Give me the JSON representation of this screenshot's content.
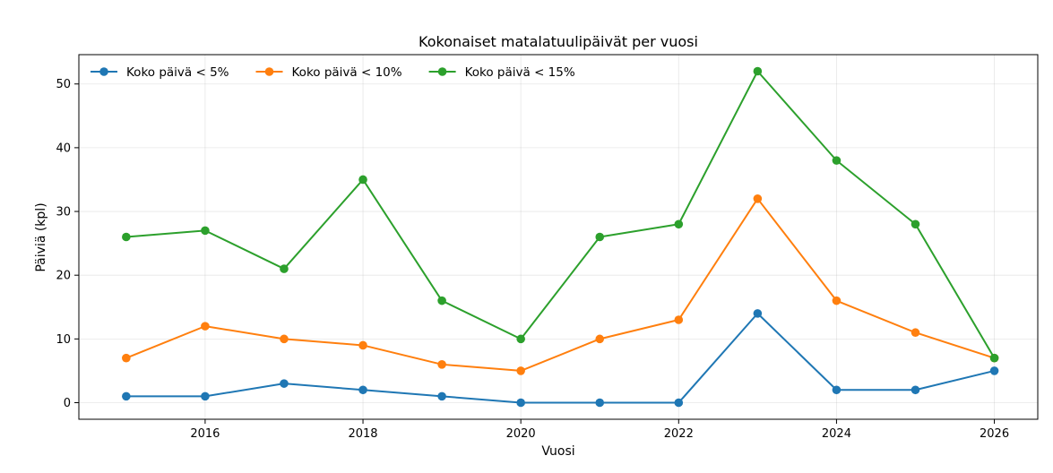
{
  "chart_data": {
    "type": "line",
    "title": "Kokonaiset matalatuulipäivät per vuosi",
    "xlabel": "Vuosi",
    "ylabel": "Päiviä (kpl)",
    "x": [
      2015,
      2016,
      2017,
      2018,
      2019,
      2020,
      2021,
      2022,
      2023,
      2024,
      2025,
      2026
    ],
    "xlim": [
      2014.4,
      2026.55
    ],
    "ylim": [
      -2.6,
      54.6
    ],
    "xticks": [
      2016,
      2018,
      2020,
      2022,
      2024,
      2026
    ],
    "yticks": [
      0,
      10,
      20,
      30,
      40,
      50
    ],
    "grid": true,
    "legend_position": "top-left",
    "series": [
      {
        "name": "Koko päivä < 5%",
        "color": "#1f77b4",
        "values": [
          1,
          1,
          3,
          2,
          1,
          0,
          0,
          0,
          14,
          2,
          2,
          5
        ]
      },
      {
        "name": "Koko päivä < 10%",
        "color": "#ff7f0e",
        "values": [
          7,
          12,
          10,
          9,
          6,
          5,
          10,
          13,
          32,
          16,
          11,
          7
        ]
      },
      {
        "name": "Koko päivä < 15%",
        "color": "#2ca02c",
        "values": [
          26,
          27,
          21,
          35,
          16,
          10,
          26,
          28,
          52,
          38,
          28,
          7
        ]
      }
    ]
  }
}
